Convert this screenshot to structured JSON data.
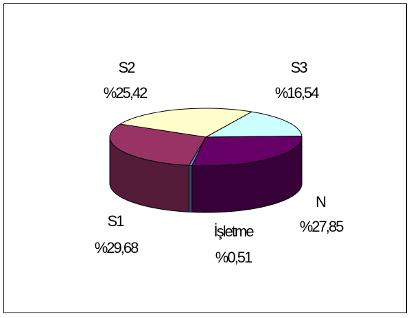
{
  "chart_data": {
    "type": "pie",
    "style": "3d",
    "legend": "none",
    "slices": [
      {
        "label": "S3",
        "value_label": "%16,54",
        "value": 16.54,
        "color": "#ccffff"
      },
      {
        "label": "N",
        "value_label": "%27,85",
        "value": 27.85,
        "color": "#660066"
      },
      {
        "label": "İşletme",
        "value_label": "%0,51",
        "value": 0.51,
        "color": "#6688cc"
      },
      {
        "label": "S1",
        "value_label": "%29,68",
        "value": 29.68,
        "color": "#993366"
      },
      {
        "label": "S2",
        "value_label": "%25,42",
        "value": 25.42,
        "color": "#ffffcc"
      }
    ]
  }
}
